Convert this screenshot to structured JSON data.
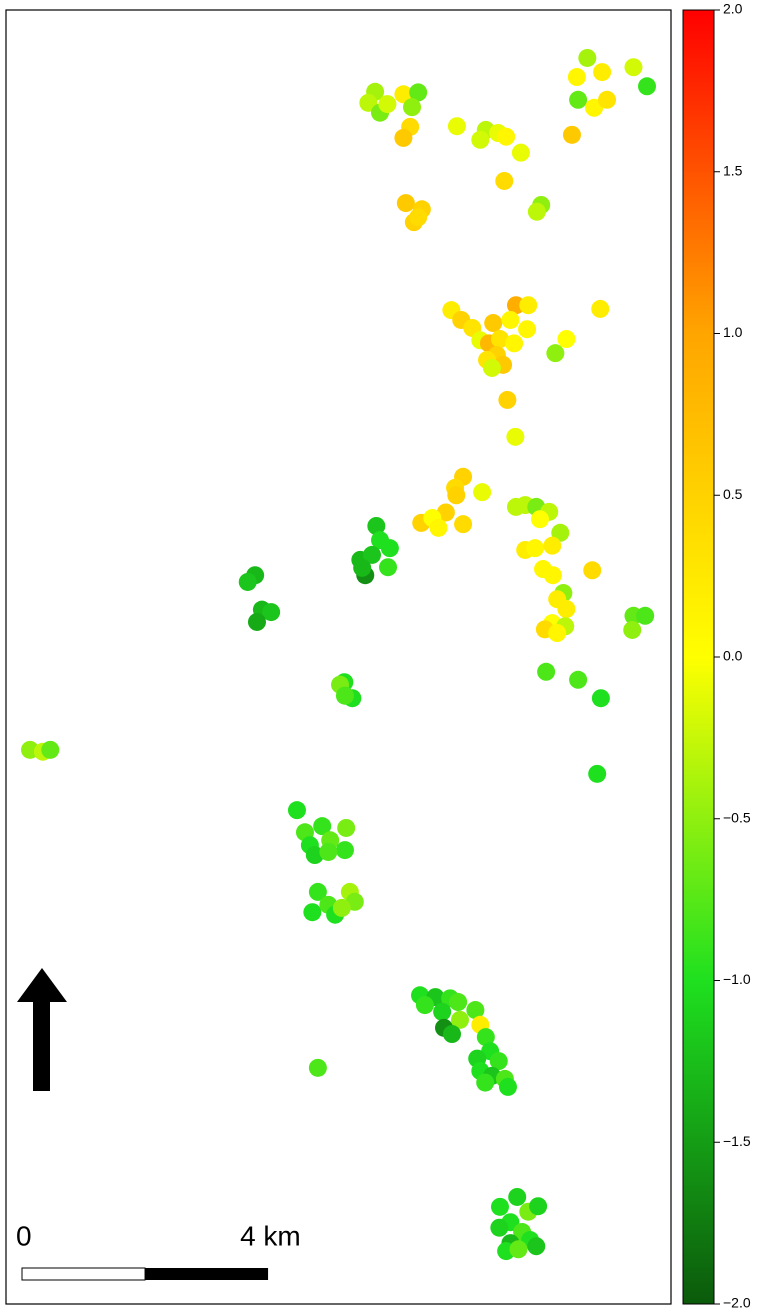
{
  "chart_data": {
    "type": "scatter",
    "extent_km": [
      10.81,
      21.04
    ],
    "x": [
      6.0,
      5.89,
      6.08,
      6.46,
      6.7,
      6.6,
      6.57,
      6.46,
      6.2,
      9.45,
      9.28,
      9.69,
      10.2,
      10.42,
      9.3,
      9.56,
      9.77,
      9.2,
      7.33,
      7.8,
      7.71,
      8.0,
      8.13,
      8.37,
      8.1,
      8.7,
      8.63,
      6.5,
      6.76,
      6.63,
      6.7,
      8.29,
      8.49,
      7.24,
      7.4,
      7.58,
      7.92,
      8.2,
      8.47,
      7.71,
      7.85,
      8.03,
      8.26,
      7.98,
      7.82,
      8.08,
      7.9,
      9.11,
      8.93,
      9.66,
      8.15,
      8.28,
      7.43,
      7.3,
      7.74,
      7.32,
      7.15,
      6.75,
      6.93,
      7.03,
      7.43,
      8.29,
      8.44,
      8.62,
      8.83,
      8.68,
      9.01,
      8.44,
      8.6,
      8.88,
      8.73,
      8.89,
      9.06,
      8.96,
      9.11,
      8.88,
      8.76,
      9.09,
      8.96,
      9.53,
      8.78,
      9.3,
      9.67,
      10.2,
      10.39,
      10.18,
      9.61,
      6.02,
      6.08,
      5.76,
      5.95,
      6.24,
      5.84,
      6.21,
      5.79,
      4.05,
      3.93,
      4.16,
      4.31,
      4.08,
      5.5,
      5.43,
      5.63,
      5.51,
      0.39,
      0.6,
      0.72,
      4.73,
      4.86,
      5.14,
      5.53,
      4.94,
      5.27,
      5.02,
      5.51,
      5.24,
      5.07,
      5.59,
      5.67,
      4.98,
      5.24,
      5.35,
      5.46,
      5.07,
      6.73,
      6.98,
      7.22,
      7.35,
      6.81,
      7.09,
      7.63,
      7.38,
      7.12,
      7.25,
      7.71,
      7.8,
      7.87,
      7.66,
      8.01,
      7.71,
      7.9,
      8.11,
      7.79,
      8.16,
      8.31,
      8.03,
      8.49,
      8.65,
      8.2,
      8.02,
      8.39,
      8.2,
      8.52,
      8.62,
      8.13,
      8.33
    ],
    "y": [
      19.71,
      19.53,
      19.37,
      19.67,
      19.7,
      19.46,
      19.14,
      18.96,
      19.51,
      20.26,
      19.95,
      20.03,
      20.11,
      19.8,
      19.58,
      19.45,
      19.58,
      19.01,
      19.15,
      19.09,
      18.93,
      19.04,
      18.98,
      18.72,
      18.26,
      17.87,
      17.76,
      17.9,
      17.8,
      17.59,
      17.67,
      16.24,
      16.24,
      16.16,
      16.0,
      15.87,
      15.95,
      16.0,
      15.85,
      15.67,
      15.62,
      15.69,
      15.62,
      15.43,
      15.35,
      15.27,
      15.22,
      15.69,
      15.46,
      16.18,
      14.7,
      14.1,
      13.45,
      13.27,
      13.2,
      13.15,
      12.87,
      12.7,
      12.78,
      12.62,
      12.68,
      12.96,
      12.99,
      12.96,
      12.88,
      12.76,
      12.54,
      12.26,
      12.29,
      12.33,
      11.95,
      11.85,
      11.56,
      11.46,
      11.3,
      11.07,
      10.97,
      11.02,
      10.91,
      11.93,
      10.28,
      10.15,
      9.85,
      11.19,
      11.19,
      10.96,
      8.62,
      12.65,
      12.42,
      12.1,
      12.18,
      12.29,
      11.85,
      11.98,
      11.97,
      11.85,
      11.74,
      11.29,
      11.25,
      11.09,
      10.11,
      10.07,
      9.85,
      9.89,
      9.01,
      8.98,
      9.01,
      8.03,
      7.67,
      7.77,
      7.74,
      7.46,
      7.54,
      7.3,
      7.38,
      7.35,
      6.7,
      6.7,
      6.54,
      6.37,
      6.49,
      6.33,
      6.44,
      3.84,
      5.02,
      4.99,
      4.97,
      4.91,
      4.86,
      4.75,
      4.78,
      4.62,
      4.49,
      4.39,
      4.54,
      4.34,
      4.11,
      3.99,
      3.95,
      3.79,
      3.71,
      3.66,
      3.6,
      3.53,
      1.74,
      1.58,
      1.5,
      1.59,
      1.33,
      1.24,
      1.17,
      0.99,
      1.04,
      0.94,
      0.86,
      0.89
    ],
    "values": [
      -0.4,
      -0.3,
      -0.6,
      0.2,
      -0.7,
      -0.5,
      0.4,
      0.6,
      -0.2,
      -0.4,
      0.1,
      0.2,
      -0.2,
      -0.9,
      -0.7,
      0.1,
      0.3,
      0.6,
      -0.1,
      -0.3,
      -0.2,
      -0.1,
      0.1,
      -0.1,
      0.4,
      -0.5,
      -0.3,
      0.6,
      0.5,
      0.5,
      0.4,
      0.9,
      0.2,
      0.2,
      0.5,
      0.3,
      0.6,
      0.1,
      0.1,
      -0.1,
      0.8,
      0.3,
      0.1,
      0.5,
      0.3,
      0.6,
      -0.2,
      0.0,
      -0.5,
      0.2,
      0.5,
      -0.1,
      0.5,
      0.4,
      -0.1,
      0.5,
      0.5,
      0.5,
      0.0,
      0.1,
      0.4,
      -0.3,
      -0.3,
      -0.6,
      -0.3,
      0.0,
      -0.4,
      0.2,
      0.1,
      0.2,
      0.1,
      0.1,
      -0.5,
      0.2,
      0.2,
      0.0,
      0.4,
      -0.3,
      0.1,
      0.4,
      -0.8,
      -0.8,
      -1.0,
      -0.7,
      -0.8,
      -0.5,
      -1.0,
      -1.2,
      -1.0,
      -1.3,
      -1.2,
      -1.0,
      -1.6,
      -0.9,
      -1.3,
      -1.3,
      -1.2,
      -1.3,
      -1.2,
      -1.4,
      -1.0,
      -0.6,
      -1.0,
      -0.8,
      -0.5,
      -0.3,
      -0.7,
      -1.0,
      -0.8,
      -0.9,
      -0.6,
      -1.0,
      -0.7,
      -1.1,
      -0.9,
      -0.8,
      -0.9,
      -0.4,
      -0.6,
      -1.0,
      -0.8,
      -1.0,
      -0.5,
      -0.8,
      -1.0,
      -1.2,
      -0.9,
      -0.8,
      -0.9,
      -1.1,
      -0.8,
      -0.5,
      -1.6,
      -1.3,
      0.2,
      -0.9,
      -1.0,
      -1.1,
      -0.9,
      -1.0,
      -1.2,
      -0.8,
      -0.9,
      -1.0,
      -1.1,
      -1.0,
      -0.6,
      -1.1,
      -1.0,
      -1.1,
      -0.8,
      -1.3,
      -1.0,
      -1.2,
      -1.0,
      -0.7
    ],
    "clim": [
      -2,
      2
    ],
    "colorscale": [
      {
        "value": -2,
        "color": "#0b5a0b"
      },
      {
        "value": -1,
        "color": "#1fe01f"
      },
      {
        "value": 0,
        "color": "#ffff00"
      },
      {
        "value": 1,
        "color": "#ffa500"
      },
      {
        "value": 2,
        "color": "#ff0000"
      }
    ],
    "cticks": [
      {
        "value": -2,
        "label": "−2.0"
      },
      {
        "value": -1.5,
        "label": "−1.5"
      },
      {
        "value": -1,
        "label": "−1.0"
      },
      {
        "value": -0.5,
        "label": "−0.5"
      },
      {
        "value": 0,
        "label": "0.0"
      },
      {
        "value": 0.5,
        "label": "0.5"
      },
      {
        "value": 1,
        "label": "1.0"
      },
      {
        "value": 1.5,
        "label": "1.5"
      },
      {
        "value": 2,
        "label": "2.0"
      }
    ],
    "scale_bar": {
      "length_km": 4,
      "labels": [
        "0",
        "4 km"
      ]
    }
  }
}
